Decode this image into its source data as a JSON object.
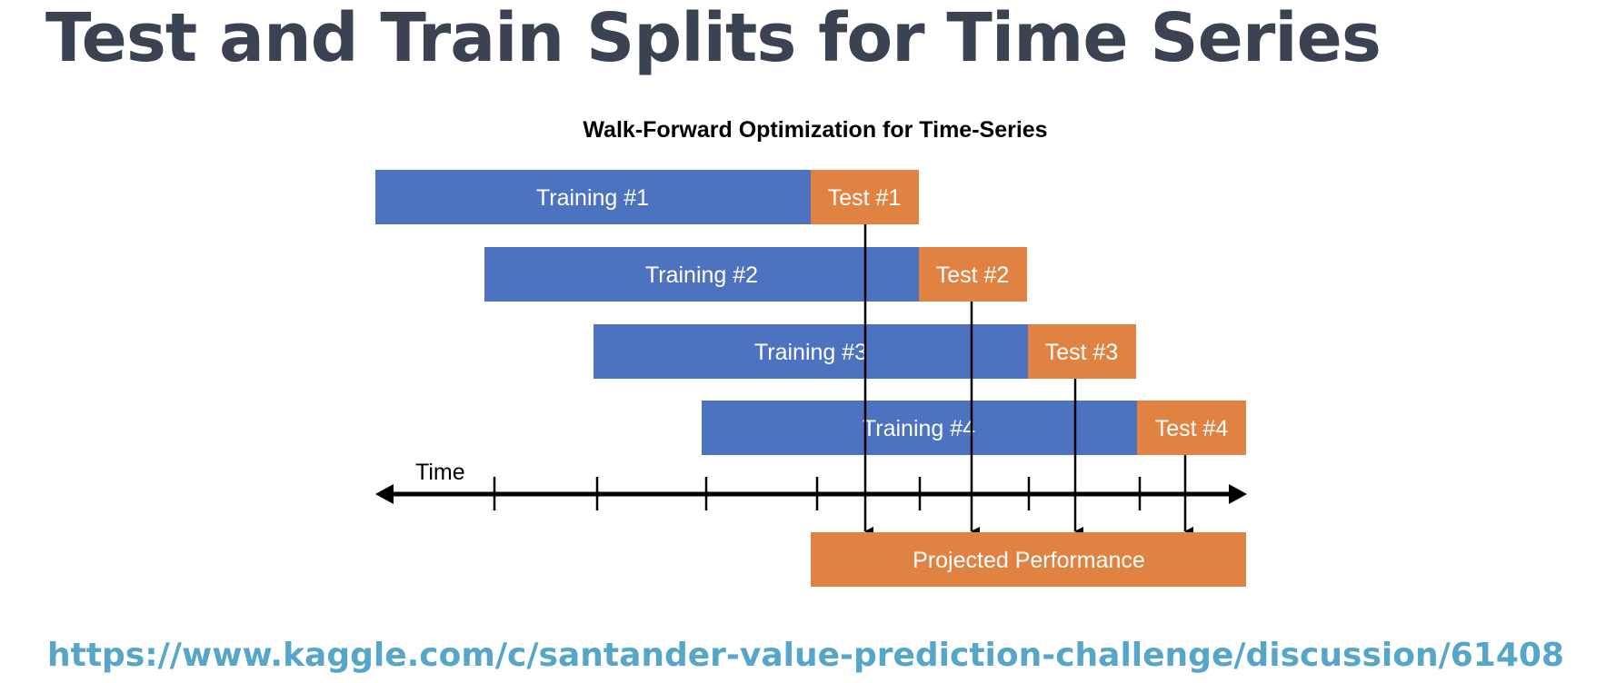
{
  "slide": {
    "title": "Test and Train Splits for Time Series",
    "link": "https://www.kaggle.com/c/santander-value-prediction-challenge/discussion/61408"
  },
  "diagram": {
    "title": "Walk-Forward Optimization for Time-Series",
    "axis_label": "Time",
    "colors": {
      "training": "#4c72c0",
      "test": "#e08342",
      "text_on_bar": "#ffffff",
      "line": "#000000"
    },
    "rows": [
      {
        "training_label": "Training #1",
        "test_label": "Test #1"
      },
      {
        "training_label": "Training #2",
        "test_label": "Test #2"
      },
      {
        "training_label": "Training #3",
        "test_label": "Test #3"
      },
      {
        "training_label": "Training #4",
        "test_label": "Test #4"
      }
    ],
    "result_label": "Projected Performance"
  }
}
